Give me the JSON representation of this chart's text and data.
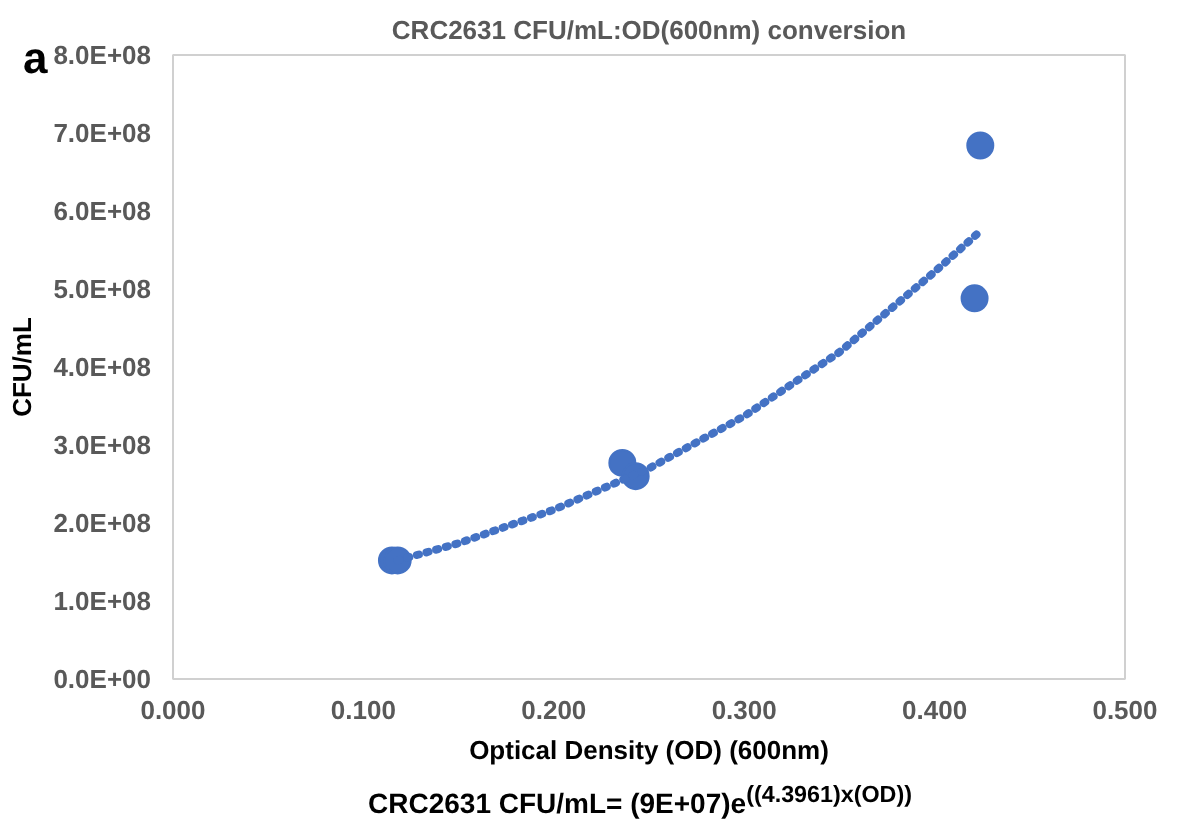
{
  "chart_data": {
    "type": "scatter",
    "title": "CRC2631 CFU/mL:OD(600nm) conversion",
    "xlabel": "Optical Density (OD) (600nm)",
    "ylabel": "CFU/mL",
    "annotations": [
      "a",
      "CRC2631 CFU/mL= (9E+07)e$^{((4.3961)x(OD))}$"
    ],
    "series": [
      {
        "type": "scatter",
        "color": "#4472c4",
        "marker": "circle",
        "x": [
          0.115,
          0.118,
          0.236,
          0.243,
          0.421,
          0.424
        ],
        "values": [
          152000000,
          152000000,
          277000000,
          260000000,
          488000000,
          684000000
        ]
      },
      {
        "type": "line",
        "color": "#4472c4",
        "line_style": "dotted",
        "x": [
          0.118,
          0.15,
          0.2,
          0.25,
          0.3,
          0.35,
          0.4,
          0.423
        ],
        "values": [
          152000000,
          174000000,
          217000000,
          270000000,
          337000000,
          419000000,
          522000000,
          572000000
        ]
      }
    ],
    "xlim": [
      0,
      0.5
    ],
    "ylim": [
      0,
      800000000
    ],
    "xticks": [
      {
        "value": 0,
        "label": "0.000"
      },
      {
        "value": 0.1,
        "label": "0.100"
      },
      {
        "value": 0.2,
        "label": "0.200"
      },
      {
        "value": 0.3,
        "label": "0.300"
      },
      {
        "value": 0.4,
        "label": "0.400"
      },
      {
        "value": 0.5,
        "label": "0.500"
      }
    ],
    "yticks": [
      {
        "value": 0,
        "label": "0.0E+00"
      },
      {
        "value": 100000000,
        "label": "1.0E+08"
      },
      {
        "value": 200000000,
        "label": "2.0E+08"
      },
      {
        "value": 300000000,
        "label": "3.0E+08"
      },
      {
        "value": 400000000,
        "label": "4.0E+08"
      },
      {
        "value": 500000000,
        "label": "5.0E+08"
      },
      {
        "value": 600000000,
        "label": "6.0E+08"
      },
      {
        "value": 700000000,
        "label": "7.0E+08"
      },
      {
        "value": 800000000,
        "label": "8.0E+08"
      }
    ],
    "grid": false
  }
}
